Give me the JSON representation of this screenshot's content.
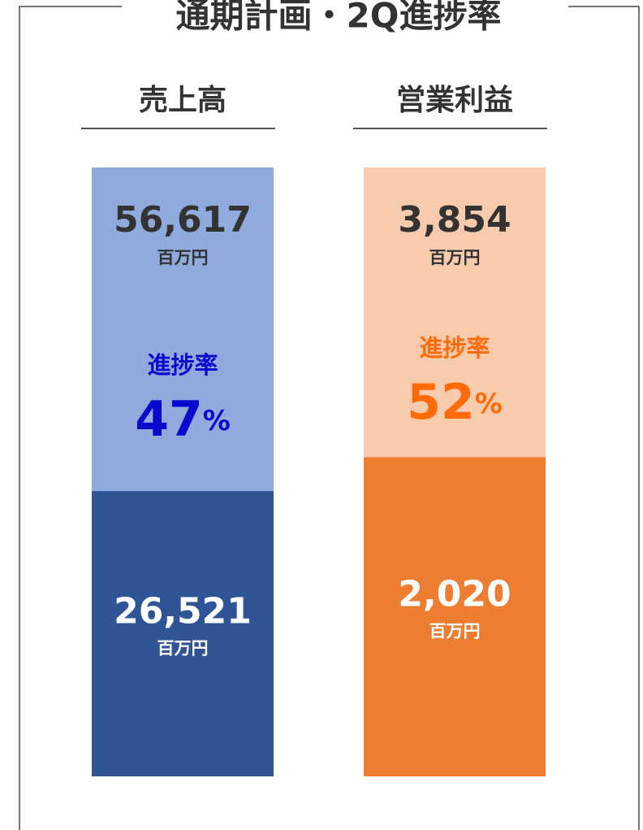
{
  "title": "通期計画・2Q進捗率",
  "panels": [
    {
      "heading": "売上高",
      "plan": {
        "value": 56617,
        "label": "56,617"
      },
      "actual": {
        "value": 26521,
        "label": "26,521"
      },
      "unit": "百万円",
      "rate_label": "進捗率",
      "rate": 47,
      "rate_unit": "%",
      "plan_color": "#8faadc",
      "actual_color": "#2f5597",
      "rate_color": "#0a0acf"
    },
    {
      "heading": "営業利益",
      "plan": {
        "value": 3854,
        "label": "3,854"
      },
      "actual": {
        "value": 2020,
        "label": "2,020"
      },
      "unit": "百万円",
      "rate_label": "進捗率",
      "rate": 52,
      "rate_unit": "%",
      "plan_color": "#f8cbad",
      "actual_color": "#ed7d31",
      "rate_color": "#ff6a0a"
    }
  ]
}
